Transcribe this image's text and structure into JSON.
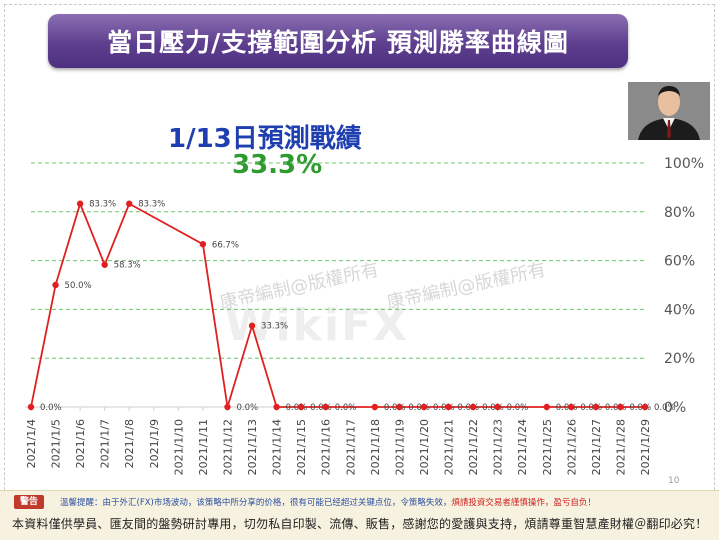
{
  "header": {
    "title": "當日壓力/支撐範圍分析 預測勝率曲線圖"
  },
  "chart_heading": {
    "date_label": "1/13日預測戰績",
    "win_rate": "33.3%"
  },
  "watermarks": {
    "text1": "康帝編制@版權所有",
    "text2": "康帝編制@版權所有",
    "logo": "WikiFX"
  },
  "footer": {
    "warning_badge": "警告",
    "warning_text_a": "溫馨提醒：由于外汇(FX)市场波动，该策略中所分享的价格，很有可能已经超过关键点位，令策略失效，",
    "warning_text_b": "煩請投資交易者謹慎操作，盈亏自负！",
    "copyright": "本資料僅供學員、匯友間的盤勢研討專用，切勿私自印製、流傳、販售，感謝您的愛護與支持，煩請尊重智慧產財權＠翻印必究！"
  },
  "page_number": "10",
  "chart_data": {
    "type": "line",
    "title": "",
    "xlabel": "",
    "ylabel": "",
    "ylim": [
      0,
      100
    ],
    "y_ticks": [
      "0%",
      "20%",
      "40%",
      "60%",
      "80%",
      "100%"
    ],
    "grid": true,
    "series_color": "#e02020",
    "categories": [
      "2021/1/4",
      "2021/1/5",
      "2021/1/6",
      "2021/1/7",
      "2021/1/8",
      "2021/1/9",
      "2021/1/10",
      "2021/1/11",
      "2021/1/12",
      "2021/1/13",
      "2021/1/14",
      "2021/1/15",
      "2021/1/16",
      "2021/1/17",
      "2021/1/18",
      "2021/1/19",
      "2021/1/20",
      "2021/1/21",
      "2021/1/22",
      "2021/1/23",
      "2021/1/24",
      "2021/1/25",
      "2021/1/26",
      "2021/1/27",
      "2021/1/28",
      "2021/1/29"
    ],
    "points": [
      {
        "x": "2021/1/4",
        "y": 0.0,
        "label": "0.0%"
      },
      {
        "x": "2021/1/5",
        "y": 50.0,
        "label": "50.0%"
      },
      {
        "x": "2021/1/6",
        "y": 83.3,
        "label": "83.3%"
      },
      {
        "x": "2021/1/7",
        "y": 58.3,
        "label": "58.3%"
      },
      {
        "x": "2021/1/8",
        "y": 83.3,
        "label": "83.3%"
      },
      {
        "x": "2021/1/11",
        "y": 66.7,
        "label": "66.7%"
      },
      {
        "x": "2021/1/12",
        "y": 0.0,
        "label": "0.0%"
      },
      {
        "x": "2021/1/13",
        "y": 33.3,
        "label": "33.3%"
      },
      {
        "x": "2021/1/14",
        "y": 0.0,
        "label": "0.0%"
      },
      {
        "x": "2021/1/15",
        "y": 0.0,
        "label": "0.0%"
      },
      {
        "x": "2021/1/16",
        "y": 0.0,
        "label": "0.0%"
      },
      {
        "x": "2021/1/18",
        "y": 0.0,
        "label": "0.0%"
      },
      {
        "x": "2021/1/19",
        "y": 0.0,
        "label": "0.0%"
      },
      {
        "x": "2021/1/20",
        "y": 0.0,
        "label": "0.0%"
      },
      {
        "x": "2021/1/21",
        "y": 0.0,
        "label": "0.0%"
      },
      {
        "x": "2021/1/22",
        "y": 0.0,
        "label": "0.0%"
      },
      {
        "x": "2021/1/23",
        "y": 0.0,
        "label": "0.0%"
      },
      {
        "x": "2021/1/25",
        "y": 0.0,
        "label": "0.0%"
      },
      {
        "x": "2021/1/26",
        "y": 0.0,
        "label": "0.0%"
      },
      {
        "x": "2021/1/27",
        "y": 0.0,
        "label": "0.0%"
      },
      {
        "x": "2021/1/28",
        "y": 0.0,
        "label": "0.0%"
      },
      {
        "x": "2021/1/29",
        "y": 0.0,
        "label": "0.0%"
      }
    ]
  }
}
